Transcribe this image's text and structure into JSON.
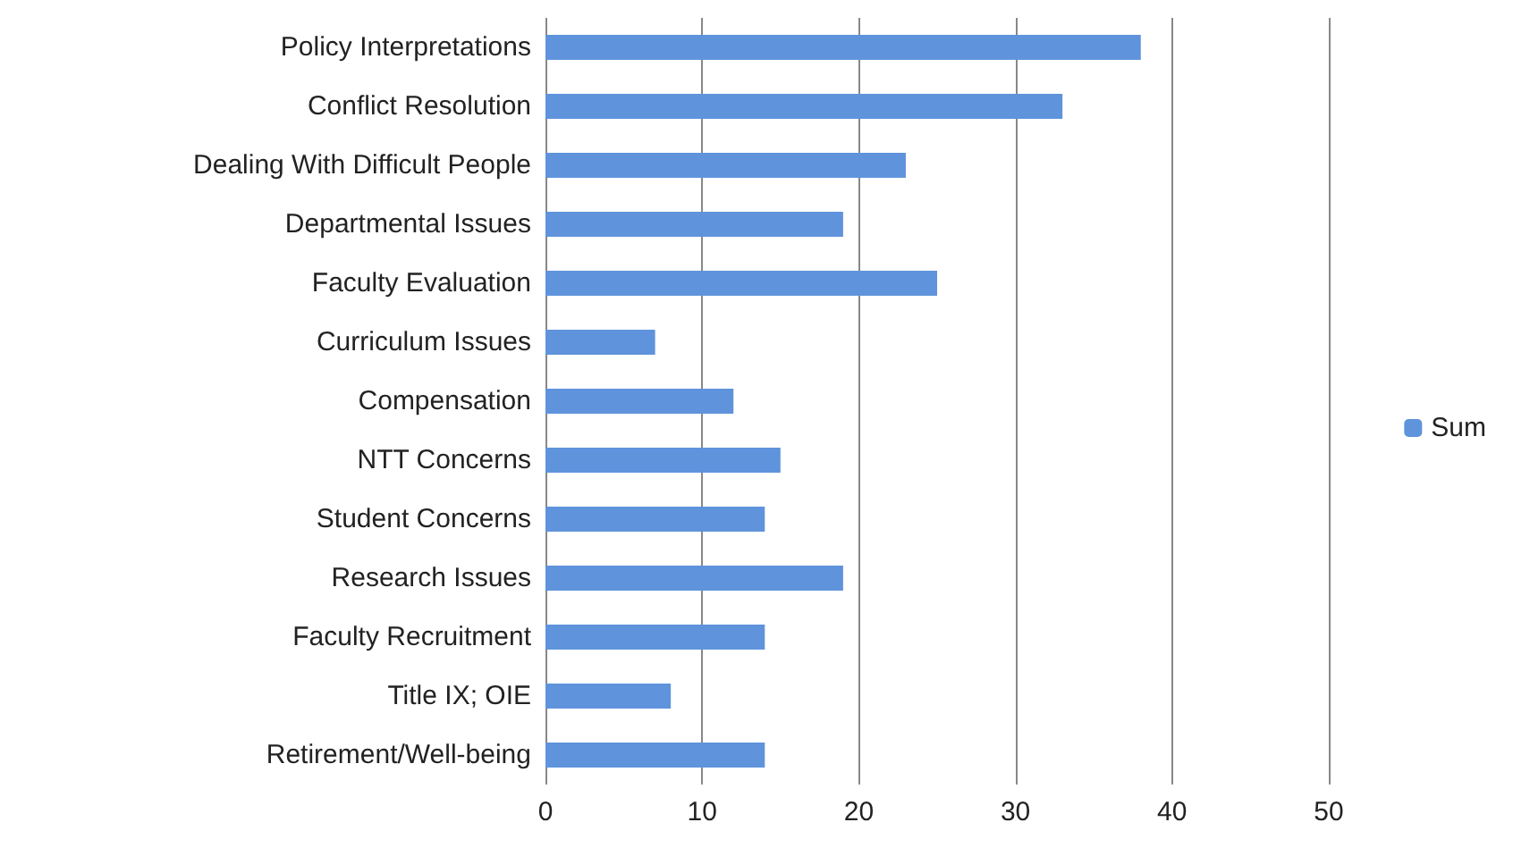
{
  "chart_data": {
    "type": "bar",
    "orientation": "horizontal",
    "categories": [
      "Policy Interpretations",
      "Conflict Resolution",
      "Dealing With Difficult People",
      "Departmental Issues",
      "Faculty Evaluation",
      "Curriculum Issues",
      "Compensation",
      "NTT Concerns",
      "Student Concerns",
      "Research Issues",
      "Faculty Recruitment",
      "Title IX; OIE",
      "Retirement/Well-being"
    ],
    "series": [
      {
        "name": "Sum",
        "color": "#5f93dc",
        "values": [
          38,
          33,
          23,
          19,
          25,
          7,
          12,
          15,
          14,
          19,
          14,
          8,
          14
        ]
      }
    ],
    "xlim": [
      0,
      50
    ],
    "xticks": [
      0,
      10,
      20,
      30,
      40,
      50
    ],
    "grid": "x",
    "legend": "right"
  }
}
